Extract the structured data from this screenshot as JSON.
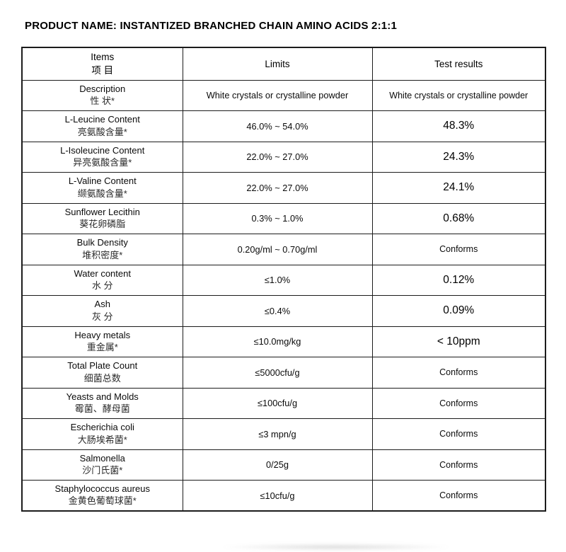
{
  "page": {
    "title": "PRODUCT NAME: INSTANTIZED BRANCHED CHAIN AMINO ACIDS 2:1:1"
  },
  "table": {
    "headers": {
      "items_en": "Items",
      "items_zh": "项  目",
      "limits": "Limits",
      "results": "Test results"
    },
    "rows": [
      {
        "item_en": "Description",
        "item_zh": "性  状*",
        "limit": "White crystals or crystalline powder",
        "result": "White crystals or crystalline powder",
        "emphasis": false
      },
      {
        "item_en": "L-Leucine Content",
        "item_zh": "亮氨酸含量*",
        "limit": "46.0% ~ 54.0%",
        "result": "48.3%",
        "emphasis": true
      },
      {
        "item_en": "L-Isoleucine Content",
        "item_zh": "异亮氨酸含量*",
        "limit": "22.0% ~ 27.0%",
        "result": "24.3%",
        "emphasis": true
      },
      {
        "item_en": "L-Valine Content",
        "item_zh": "缬氨酸含量*",
        "limit": "22.0% ~ 27.0%",
        "result": "24.1%",
        "emphasis": true
      },
      {
        "item_en": "Sunflower Lecithin",
        "item_zh": "葵花卵磷脂",
        "limit": "0.3% ~ 1.0%",
        "result": "0.68%",
        "emphasis": true
      },
      {
        "item_en": "Bulk Density",
        "item_zh": "堆积密度*",
        "limit": "0.20g/ml ~ 0.70g/ml",
        "result": "Conforms",
        "emphasis": false
      },
      {
        "item_en": "Water content",
        "item_zh": "水  分",
        "limit": "≤1.0%",
        "result": "0.12%",
        "emphasis": true
      },
      {
        "item_en": "Ash",
        "item_zh": "灰  分",
        "limit": "≤0.4%",
        "result": "0.09%",
        "emphasis": true
      },
      {
        "item_en": "Heavy metals",
        "item_zh": "重金属*",
        "limit": "≤10.0mg/kg",
        "result": "< 10ppm",
        "emphasis": true
      },
      {
        "item_en": "Total Plate Count",
        "item_zh": "细菌总数",
        "limit": "≤5000cfu/g",
        "result": "Conforms",
        "emphasis": false
      },
      {
        "item_en": "Yeasts and Molds",
        "item_zh": "霉菌、酵母菌",
        "limit": "≤100cfu/g",
        "result": "Conforms",
        "emphasis": false
      },
      {
        "item_en": "Escherichia coli",
        "item_zh": "大肠埃希菌*",
        "limit": "≤3 mpn/g",
        "result": "Conforms",
        "emphasis": false
      },
      {
        "item_en": "Salmonella",
        "item_zh": "沙门氏菌*",
        "limit": "0/25g",
        "result": "Conforms",
        "emphasis": false
      },
      {
        "item_en": "Staphylococcus aureus",
        "item_zh": "金黄色葡萄球菌*",
        "limit": "≤10cfu/g",
        "result": "Conforms",
        "emphasis": false
      }
    ]
  }
}
